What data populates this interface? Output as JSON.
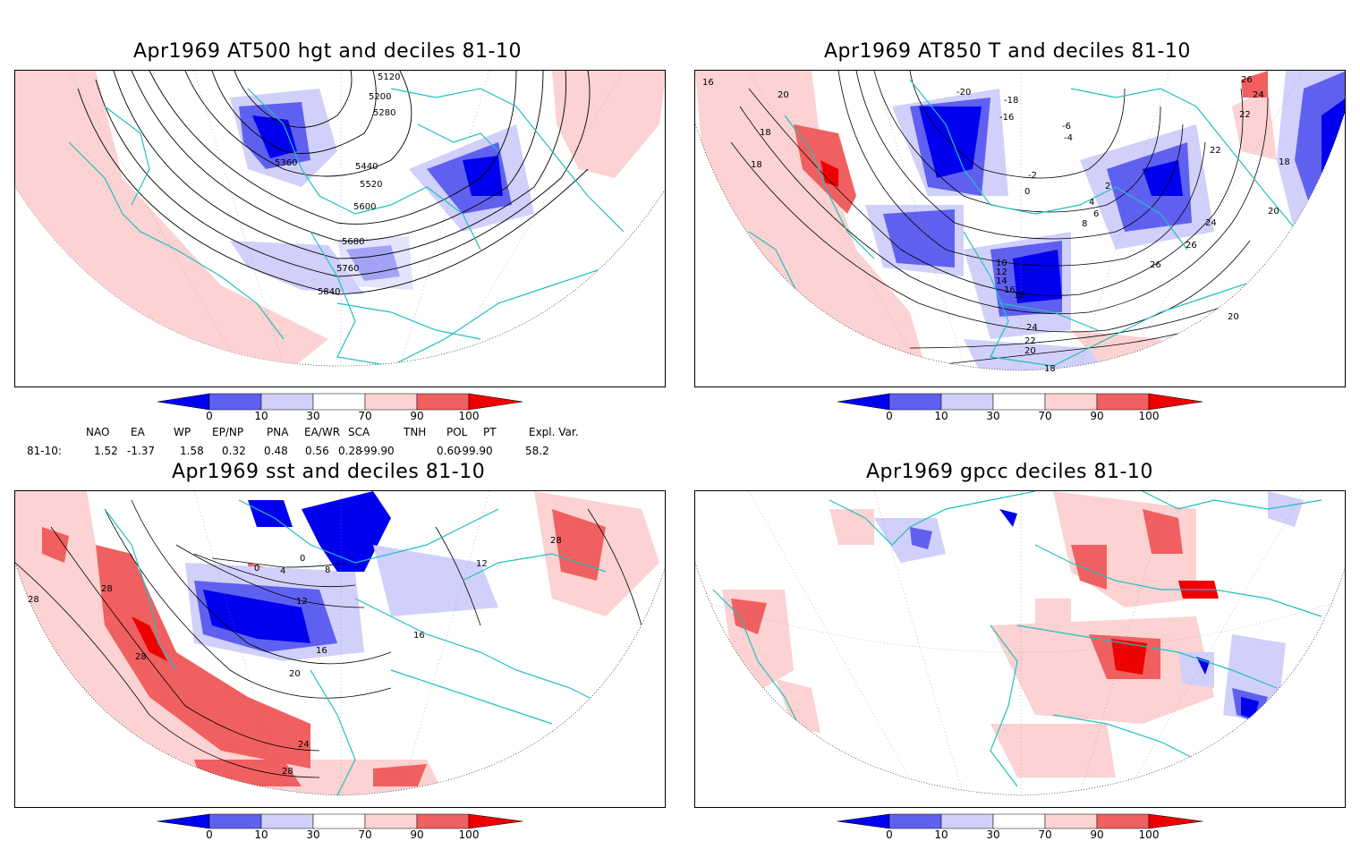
{
  "panels": {
    "tl": {
      "title": "Apr1969 AT500 hgt and deciles 81-10",
      "contours": [
        "5120",
        "5200",
        "5280",
        "5360",
        "5440",
        "5520",
        "5600",
        "5680",
        "5760",
        "5840"
      ]
    },
    "tr": {
      "title": "Apr1969 AT850 T and deciles 81-10",
      "contours": [
        "16",
        "20",
        "18",
        "18",
        "26",
        "24",
        "22",
        "-20",
        "-18",
        "-16",
        "-6",
        "-4",
        "-2",
        "0",
        "2",
        "4",
        "6",
        "8",
        "10",
        "12",
        "14",
        "16",
        "18",
        "24",
        "22",
        "20",
        "18",
        "22",
        "24",
        "26",
        "26",
        "20",
        "18",
        "20"
      ]
    },
    "bl": {
      "title": "Apr1969 sst and deciles 81-10",
      "contours": [
        "28",
        "28",
        "28",
        "0",
        "4",
        "0",
        "8",
        "12",
        "16",
        "16",
        "20",
        "24",
        "28",
        "28",
        "12"
      ]
    },
    "br": {
      "title": "Apr1969 gpcc deciles 81-10"
    }
  },
  "colorbar": {
    "ticks": [
      "0",
      "10",
      "30",
      "70",
      "90",
      "100"
    ],
    "colors": [
      "#0000ee",
      "#6060f0",
      "#d0d0fa",
      "#ffffff",
      "#fcd2d2",
      "#f06060",
      "#ee0000"
    ]
  },
  "indices": {
    "headers": [
      "NAO",
      "EA",
      "WP",
      "EP/NP",
      "PNA",
      "EA/WR",
      "SCA",
      "TNH",
      "POL",
      "PT",
      "Expl. Var."
    ],
    "row_label": "81-10:",
    "values": [
      "1.52",
      "-1.37",
      "1.58",
      "0.32",
      "0.48",
      "0.56",
      "0.28",
      "-99.90",
      "0.60",
      "-99.90",
      "58.2"
    ]
  },
  "palette": {
    "coast": "#20c0c0",
    "strong_blue": "#0000ee",
    "mid_blue": "#6060f0",
    "light_blue": "#d0d0fa",
    "light_red": "#fcd2d2",
    "mid_red": "#f06060",
    "strong_red": "#ee0000"
  }
}
